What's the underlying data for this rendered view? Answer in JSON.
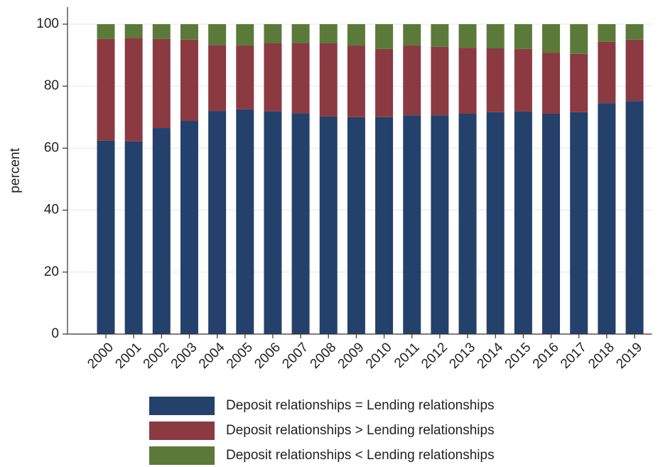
{
  "chart_data": {
    "type": "stacked_bar",
    "y_label": "percent",
    "categories": [
      "2000",
      "2001",
      "2002",
      "2003",
      "2004",
      "2005",
      "2006",
      "2007",
      "2008",
      "2009",
      "2010",
      "2011",
      "2012",
      "2013",
      "2014",
      "2015",
      "2016",
      "2017",
      "2018",
      "2019"
    ],
    "series": [
      {
        "name": "Deposit relationships = Lending relationships",
        "color": "#24416b",
        "values": [
          62.4,
          62.2,
          66.5,
          68.8,
          72.0,
          72.5,
          71.8,
          71.3,
          70.2,
          70.0,
          70.0,
          70.6,
          70.6,
          71.1,
          71.6,
          71.8,
          71.1,
          71.6,
          74.5,
          75.2
        ]
      },
      {
        "name": "Deposit relationships > Lending relationships",
        "color": "#8b3a42",
        "values": [
          32.8,
          33.4,
          28.7,
          26.2,
          21.3,
          20.6,
          22.0,
          22.5,
          23.6,
          23.1,
          22.0,
          22.5,
          22.1,
          21.3,
          20.6,
          20.2,
          19.7,
          18.8,
          19.8,
          19.8
        ]
      },
      {
        "name": "Deposit relationships < Lending relationships",
        "color": "#5b7a3a",
        "values": [
          4.8,
          4.4,
          4.8,
          5.0,
          6.7,
          6.9,
          6.2,
          6.2,
          6.2,
          6.9,
          8.0,
          6.9,
          7.3,
          7.6,
          7.8,
          8.0,
          9.2,
          9.6,
          5.7,
          5.0
        ]
      }
    ],
    "ylim": [
      0,
      105.5
    ],
    "yticks": [
      0,
      20,
      40,
      60,
      80,
      100
    ],
    "grid": true,
    "legend": "bottom"
  }
}
